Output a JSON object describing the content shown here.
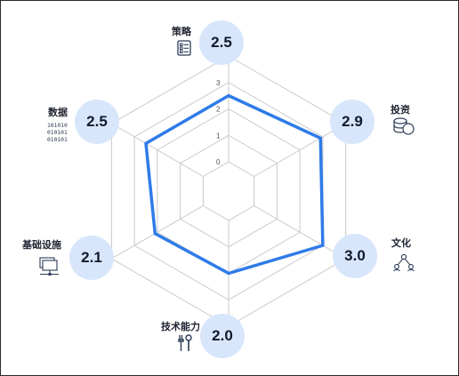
{
  "chart_data": {
    "type": "radar",
    "axis_ticks": [
      "0",
      "1",
      "2",
      "3",
      "4"
    ],
    "rmax": 4,
    "categories": [
      "策略",
      "投资",
      "文化",
      "技术能力",
      "基础设施",
      "数据"
    ],
    "values": [
      2.5,
      2.9,
      3.0,
      2.0,
      2.1,
      2.5
    ],
    "value_labels": [
      "2.5",
      "2.9",
      "3.0",
      "2.0",
      "2.1",
      "2.5"
    ],
    "line_color": "#2f7be9",
    "bubble_color": "#d8e6fb",
    "grid_color": "#c9c9c9",
    "icons": [
      "checklist-icon",
      "coins-icon",
      "people-network-icon",
      "tools-icon",
      "monitor-network-icon",
      "binary-data-icon"
    ],
    "grid": true
  }
}
